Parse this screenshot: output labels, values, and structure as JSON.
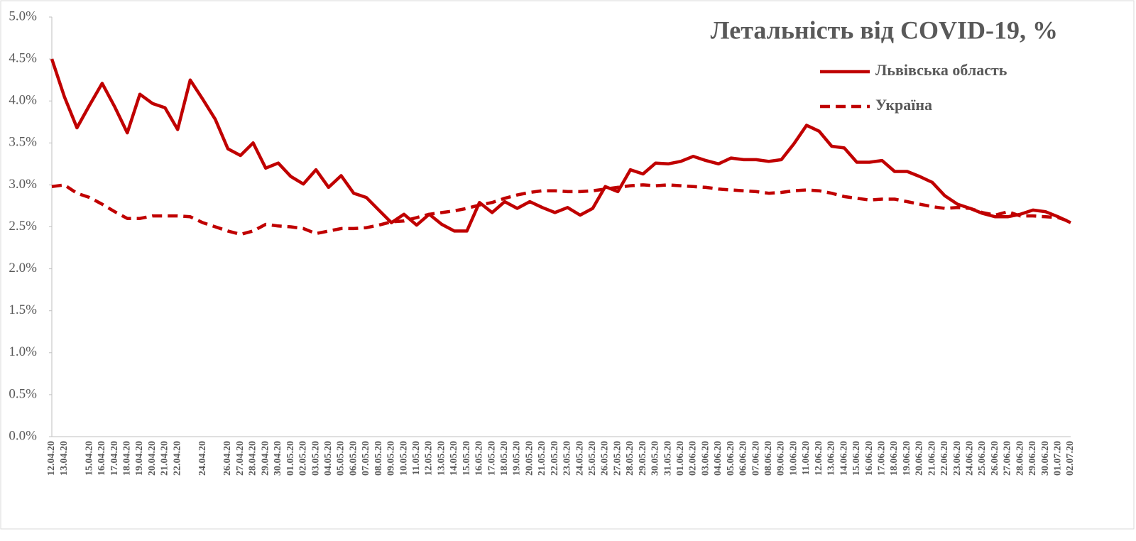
{
  "chart_data": {
    "type": "line",
    "title": "Летальність від COVID-19, %",
    "categories": [
      "12.04.20",
      "13.04.20",
      null,
      "15.04.20",
      "16.04.20",
      "17.04.20",
      "18.04.20",
      "19.04.20",
      "20.04.20",
      "21.04.20",
      "22.04.20",
      null,
      "24.04.20",
      null,
      "26.04.20",
      "27.04.20",
      "28.04.20",
      "29.04.20",
      "30.04.20",
      "01.05.20",
      "02.05.20",
      "03.05.20",
      "04.05.20",
      "05.05.20",
      "06.05.20",
      "07.05.20",
      "08.05.20",
      "09.05.20",
      "10.05.20",
      "11.05.20",
      "12.05.20",
      "13.05.20",
      "14.05.20",
      "15.05.20",
      "16.05.20",
      "17.05.20",
      "18.05.20",
      "19.05.20",
      "20.05.20",
      "21.05.20",
      "22.05.20",
      "23.05.20",
      "24.05.20",
      "25.05.20",
      "26.05.20",
      "27.05.20",
      "28.05.20",
      "29.05.20",
      "30.05.20",
      "31.05.20",
      "01.06.20",
      "02.06.20",
      "03.06.20",
      "04.06.20",
      "05.06.20",
      "06.06.20",
      "07.06.20",
      "08.06.20",
      "09.06.20",
      "10.06.20",
      "11.06.20",
      "12.06.20",
      "13.06.20",
      "14.06.20",
      "15.06.20",
      "16.06.20",
      "17.06.20",
      "18.06.20",
      "19.06.20",
      "20.06.20",
      "21.06.20",
      "22.06.20",
      "23.06.20",
      "24.06.20",
      "25.06.20",
      "26.06.20",
      "27.06.20",
      "28.06.20",
      "29.06.20",
      "30.06.20",
      "01.07.20",
      "02.07.20"
    ],
    "series": [
      {
        "name": "Львівська область",
        "color": "#c00000",
        "dash": false,
        "values": [
          4.5,
          4.05,
          3.68,
          3.95,
          4.21,
          3.93,
          3.62,
          4.08,
          3.97,
          3.92,
          3.66,
          4.25,
          4.02,
          3.78,
          3.43,
          3.35,
          3.5,
          3.2,
          3.26,
          3.1,
          3.01,
          3.18,
          2.97,
          3.11,
          2.9,
          2.85,
          2.7,
          2.55,
          2.65,
          2.52,
          2.65,
          2.53,
          2.45,
          2.45,
          2.79,
          2.67,
          2.8,
          2.72,
          2.8,
          2.73,
          2.67,
          2.73,
          2.64,
          2.72,
          2.98,
          2.92,
          3.18,
          3.13,
          3.26,
          3.25,
          3.28,
          3.34,
          3.29,
          3.25,
          3.32,
          3.3,
          3.3,
          3.28,
          3.3,
          3.49,
          3.71,
          3.64,
          3.46,
          3.44,
          3.27,
          3.27,
          3.29,
          3.16,
          3.16,
          3.1,
          3.03,
          2.87,
          2.77,
          2.72,
          2.66,
          2.62,
          2.62,
          2.65,
          2.7,
          2.68,
          2.62,
          2.55
        ]
      },
      {
        "name": "Україна",
        "color": "#c00000",
        "dash": true,
        "values": [
          2.98,
          3.0,
          2.9,
          2.85,
          2.77,
          2.68,
          2.6,
          2.6,
          2.63,
          2.63,
          2.63,
          2.62,
          2.55,
          2.5,
          2.45,
          2.41,
          2.45,
          2.53,
          2.51,
          2.5,
          2.48,
          2.42,
          2.45,
          2.48,
          2.48,
          2.49,
          2.52,
          2.56,
          2.57,
          2.61,
          2.65,
          2.67,
          2.69,
          2.72,
          2.76,
          2.79,
          2.84,
          2.88,
          2.91,
          2.93,
          2.93,
          2.92,
          2.92,
          2.93,
          2.95,
          2.97,
          2.99,
          3.0,
          2.99,
          3.0,
          2.99,
          2.98,
          2.97,
          2.95,
          2.94,
          2.93,
          2.92,
          2.9,
          2.91,
          2.93,
          2.94,
          2.93,
          2.9,
          2.86,
          2.84,
          2.82,
          2.83,
          2.83,
          2.8,
          2.77,
          2.74,
          2.72,
          2.73,
          2.72,
          2.67,
          2.64,
          2.68,
          2.63,
          2.63,
          2.62,
          2.61,
          2.56
        ]
      }
    ],
    "ylim": [
      0,
      5
    ],
    "yticks": [
      {
        "value": 0,
        "label": "0.0%"
      },
      {
        "value": 0.5,
        "label": "0.5%"
      },
      {
        "value": 1,
        "label": "1.0%"
      },
      {
        "value": 1.5,
        "label": "1.5%"
      },
      {
        "value": 2,
        "label": "2.0%"
      },
      {
        "value": 2.5,
        "label": "2.5%"
      },
      {
        "value": 3,
        "label": "3.0%"
      },
      {
        "value": 3.5,
        "label": "3.5%"
      },
      {
        "value": 4,
        "label": "4.0%"
      },
      {
        "value": 4.5,
        "label": "4.5%"
      },
      {
        "value": 5,
        "label": "5.0%"
      }
    ],
    "grid": false,
    "legend": "top-right"
  }
}
